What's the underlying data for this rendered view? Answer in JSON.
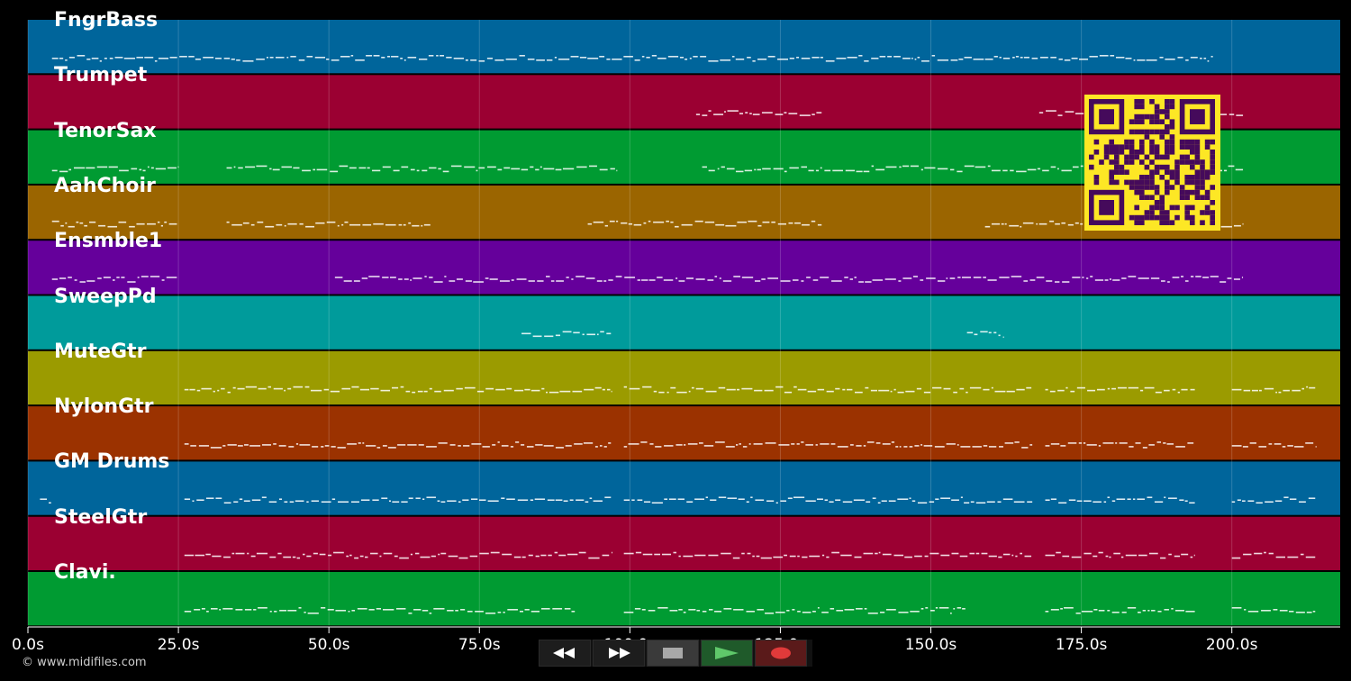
{
  "tracks": [
    {
      "name": "FngrBass",
      "color": "#00659b"
    },
    {
      "name": "Trumpet",
      "color": "#9b0032"
    },
    {
      "name": "TenorSax",
      "color": "#009b32"
    },
    {
      "name": "AahChoir",
      "color": "#9b6500"
    },
    {
      "name": "Ensmble1",
      "color": "#65009b"
    },
    {
      "name": "SweepPd",
      "color": "#009b9b"
    },
    {
      "name": "MuteGtr",
      "color": "#9b9b00"
    },
    {
      "name": "NylonGtr",
      "color": "#9b3200"
    },
    {
      "name": "GM Drums",
      "color": "#00659b"
    },
    {
      "name": "SteelGtr",
      "color": "#9b0032"
    },
    {
      "name": "Clavi.",
      "color": "#009b32"
    }
  ],
  "time_axis": {
    "ticks": [
      "0.0s",
      "25.0s",
      "50.0s",
      "75.0s",
      "100.0s",
      "125.0s",
      "150.0s",
      "175.0s",
      "200.0s"
    ],
    "tick_values": [
      0,
      25,
      50,
      75,
      100,
      125,
      150,
      175,
      200
    ],
    "max_seconds": 218
  },
  "copyright": "© www.midifiles.com",
  "transport": {
    "rewind_icon": "rewind-icon",
    "forward_icon": "fast-forward-icon",
    "stop_icon": "stop-icon",
    "play_icon": "play-icon",
    "record_icon": "record-icon"
  },
  "qr_code": "qr-code-icon"
}
